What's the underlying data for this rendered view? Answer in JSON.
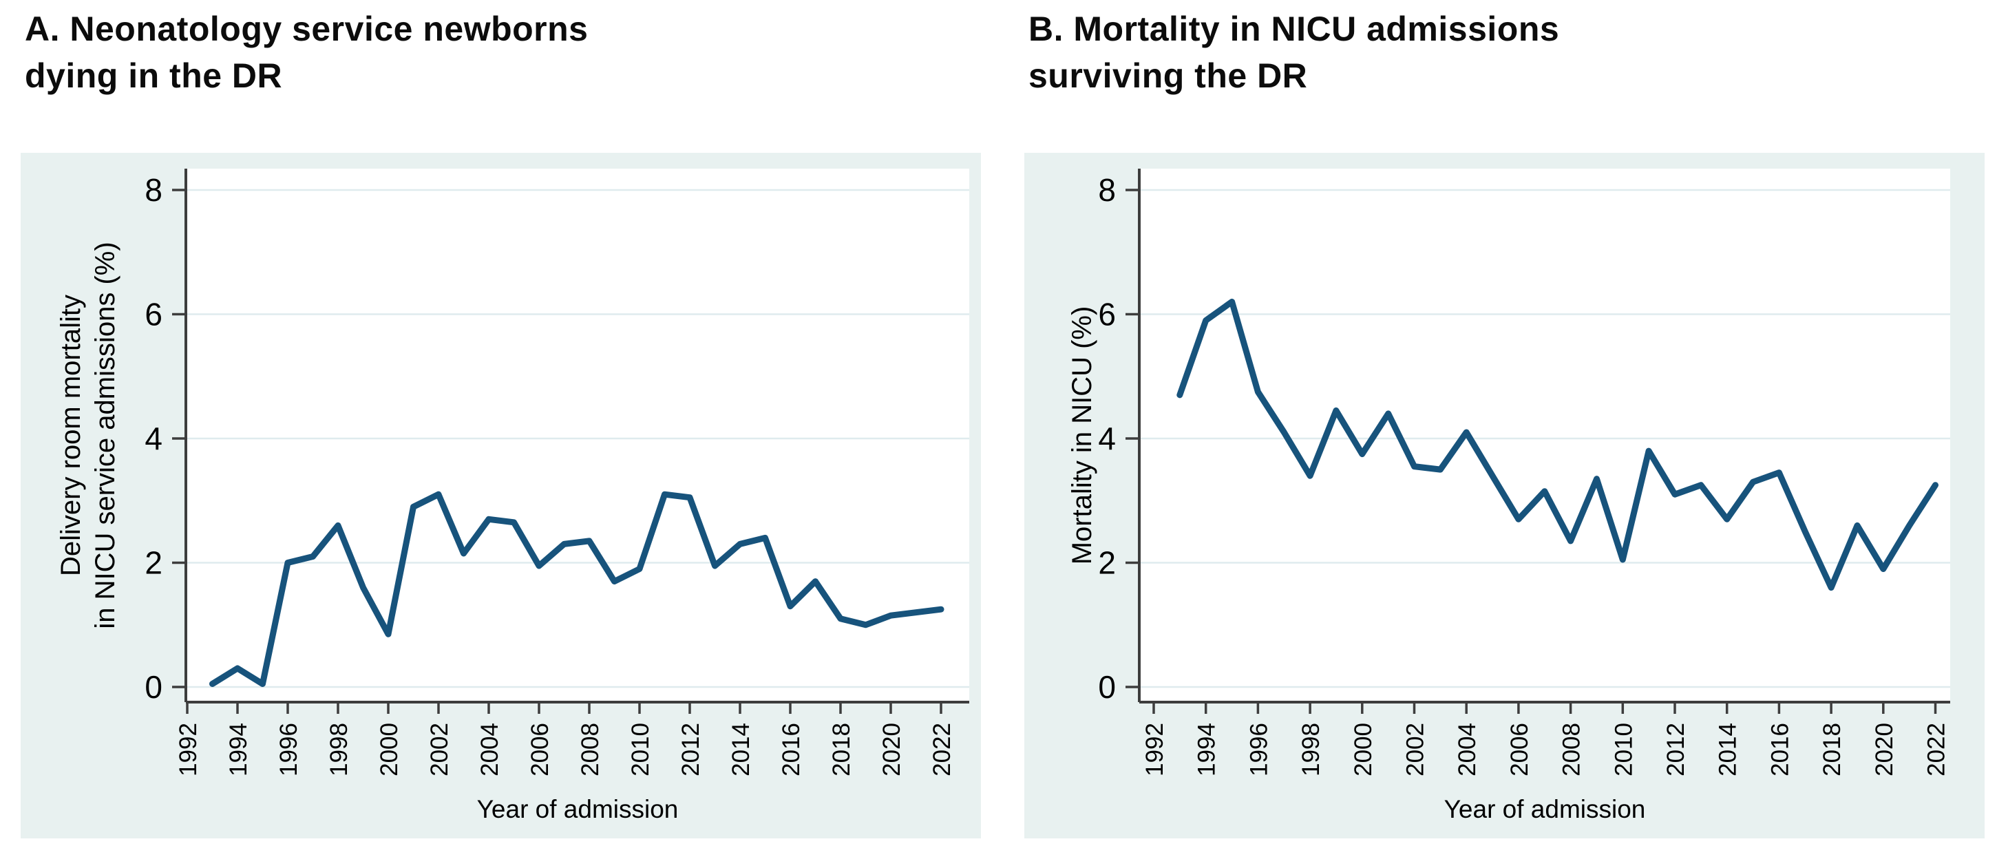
{
  "colors": {
    "line": "#17537C",
    "panel_bg": "#E8F1F0",
    "plot_bg": "#FFFFFF",
    "grid": "#DFEBEE",
    "axis": "#3D3D3D",
    "text": "#000000"
  },
  "panels": [
    {
      "id": "A",
      "title": "A.  Neonatology service newborns\ndying in the DR",
      "ylabel_lines": [
        "Delivery room mortality",
        "in NICU service admissions (%)"
      ],
      "xlabel": "Year of admission"
    },
    {
      "id": "B",
      "title": "B.  Mortality in NICU admissions\nsurviving the DR",
      "ylabel_lines": [
        "Mortality in NICU (%)"
      ],
      "xlabel": "Year of admission"
    }
  ],
  "chart_data": [
    {
      "type": "line",
      "title": "A. Neonatology service newborns dying in the DR",
      "xlabel": "Year of admission",
      "ylabel": "Delivery room mortality in NICU service admissions (%)",
      "ylim": [
        0,
        8
      ],
      "yticks": [
        0,
        2,
        4,
        6,
        8
      ],
      "xticks": [
        1992,
        1994,
        1996,
        1998,
        2000,
        2002,
        2004,
        2006,
        2008,
        2010,
        2012,
        2014,
        2016,
        2018,
        2020,
        2022
      ],
      "grid": true,
      "legend_position": "none",
      "x": [
        1993,
        1994,
        1995,
        1996,
        1997,
        1998,
        1999,
        2000,
        2001,
        2002,
        2003,
        2004,
        2005,
        2006,
        2007,
        2008,
        2009,
        2010,
        2011,
        2012,
        2013,
        2014,
        2015,
        2016,
        2017,
        2018,
        2019,
        2020,
        2021,
        2022
      ],
      "values": [
        0.05,
        0.3,
        0.05,
        2.0,
        2.1,
        2.6,
        1.6,
        0.85,
        2.9,
        3.1,
        2.15,
        2.7,
        2.65,
        1.95,
        2.3,
        2.35,
        1.7,
        1.9,
        3.1,
        3.05,
        1.95,
        2.3,
        2.4,
        1.3,
        1.7,
        1.1,
        1.0,
        1.15,
        1.2,
        1.25
      ]
    },
    {
      "type": "line",
      "title": "B. Mortality in NICU admissions surviving the DR",
      "xlabel": "Year of admission",
      "ylabel": "Mortality in NICU (%)",
      "ylim": [
        0,
        8
      ],
      "yticks": [
        0,
        2,
        4,
        6,
        8
      ],
      "xticks": [
        1992,
        1994,
        1996,
        1998,
        2000,
        2002,
        2004,
        2006,
        2008,
        2010,
        2012,
        2014,
        2016,
        2018,
        2020,
        2022
      ],
      "grid": true,
      "legend_position": "none",
      "x": [
        1993,
        1994,
        1995,
        1996,
        1997,
        1998,
        1999,
        2000,
        2001,
        2002,
        2003,
        2004,
        2005,
        2006,
        2007,
        2008,
        2009,
        2010,
        2011,
        2012,
        2013,
        2014,
        2015,
        2016,
        2017,
        2018,
        2019,
        2020,
        2021,
        2022
      ],
      "values": [
        4.7,
        5.9,
        6.2,
        4.75,
        4.1,
        3.4,
        4.45,
        3.75,
        4.4,
        3.55,
        3.5,
        4.1,
        3.4,
        2.7,
        3.15,
        2.35,
        3.35,
        2.05,
        3.8,
        3.1,
        3.25,
        2.7,
        3.3,
        3.45,
        2.5,
        1.6,
        2.6,
        1.9,
        2.6,
        3.25
      ]
    }
  ]
}
